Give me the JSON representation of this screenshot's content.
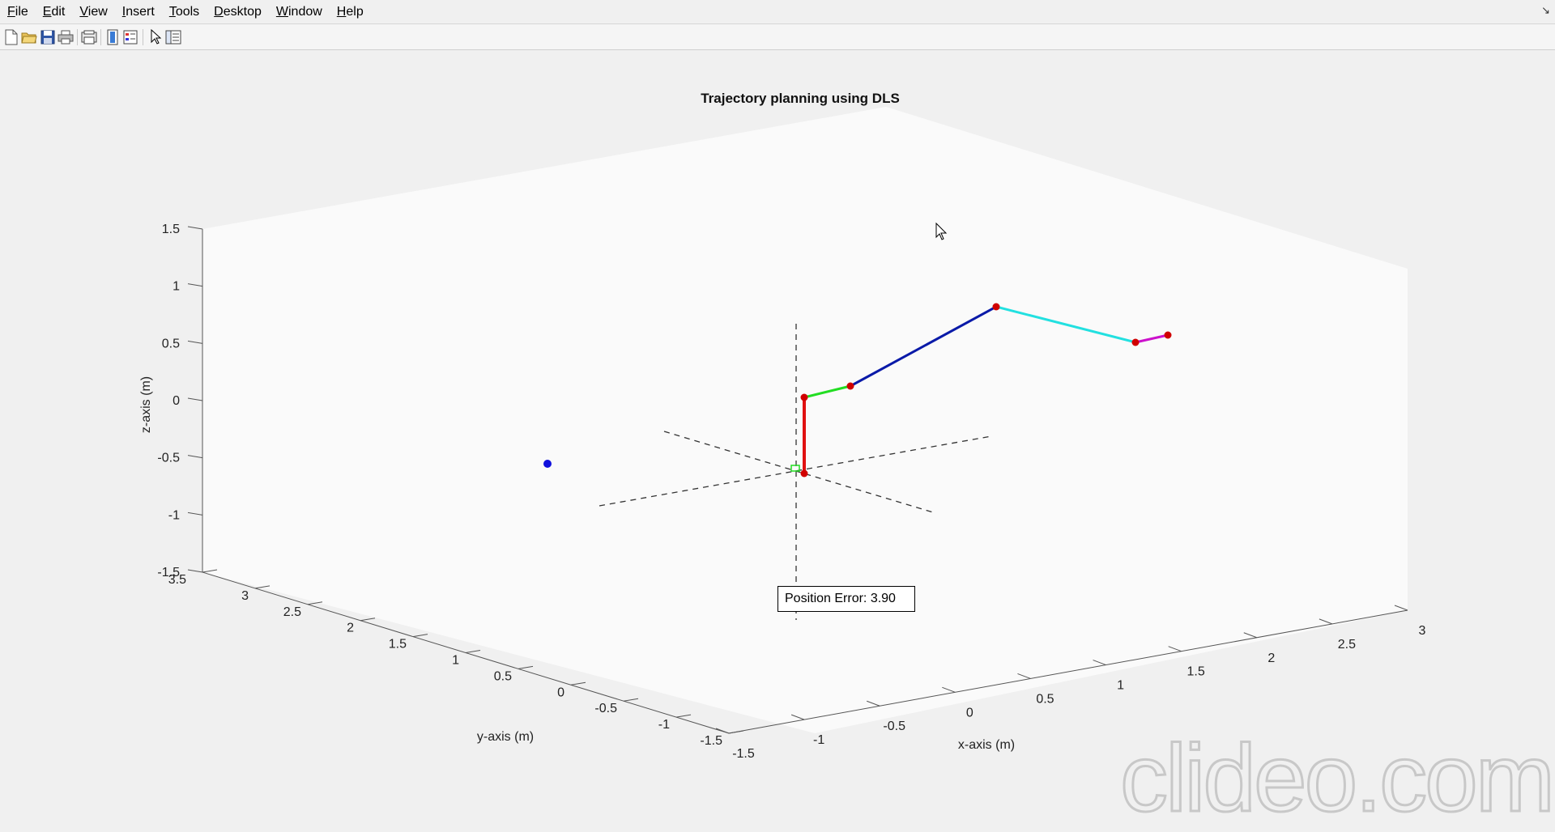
{
  "menu": [
    "File",
    "Edit",
    "View",
    "Insert",
    "Tools",
    "Desktop",
    "Window",
    "Help"
  ],
  "menu_access_keys": [
    "F",
    "E",
    "V",
    "I",
    "T",
    "D",
    "W",
    "H"
  ],
  "undock_glyph": "↘",
  "toolbar": [
    {
      "name": "new-figure-icon"
    },
    {
      "name": "open-file-icon"
    },
    {
      "name": "save-icon"
    },
    {
      "name": "print-icon"
    },
    {
      "name": "link-plot-icon"
    },
    {
      "name": "colorbar-icon"
    },
    {
      "name": "legend-icon"
    },
    {
      "name": "edit-plot-arrow-icon"
    },
    {
      "name": "property-inspector-icon"
    }
  ],
  "plot": {
    "title": "Trajectory planning using DLS",
    "x_label": "x-axis (m)",
    "y_label": "y-axis (m)",
    "z_label": "z-axis (m)",
    "x_ticks": [
      "-1.5",
      "-1",
      "-0.5",
      "0",
      "0.5",
      "1",
      "1.5",
      "2",
      "2.5",
      "3"
    ],
    "y_ticks": [
      "3.5",
      "3",
      "2.5",
      "2",
      "1.5",
      "1",
      "0.5",
      "0",
      "-0.5",
      "-1",
      "-1.5"
    ],
    "z_ticks": [
      "1.5",
      "1",
      "0.5",
      "0",
      "-0.5",
      "-1",
      "-1.5"
    ],
    "error_text": "Position Error: 3.90",
    "colors": {
      "link_base": "#e01010",
      "link_2": "#22dd22",
      "link_3": "#0a1aa8",
      "link_4": "#22e0e0",
      "link_5": "#cc11cc",
      "joint": "#d00000",
      "target": "#1010dd"
    }
  },
  "watermark": "clideo.com"
}
